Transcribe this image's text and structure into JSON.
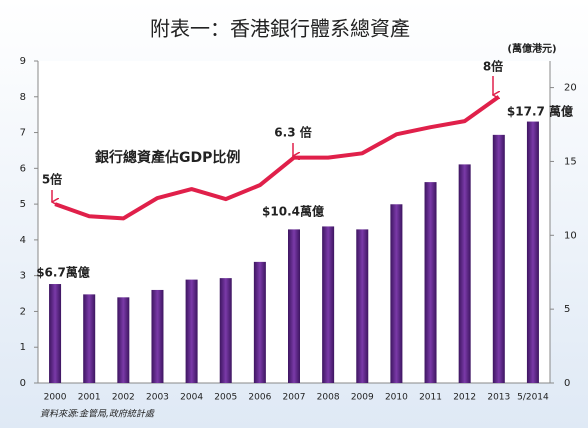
{
  "chart_data": {
    "type": "bar_line",
    "title": "附表一：香港銀行體系總資產",
    "y2_label": "(萬億港元)",
    "source": "資料來源:金管局,政府統計處",
    "categories": [
      "2000",
      "2001",
      "2002",
      "2003",
      "2004",
      "2005",
      "2006",
      "2007",
      "2008",
      "2009",
      "2010",
      "2011",
      "2012",
      "2013",
      "5/2014"
    ],
    "series": [
      {
        "name": "銀行體系總資產",
        "color": "#5a2a88",
        "type": "bar",
        "axis": "y2",
        "values": [
          6.7,
          6.0,
          5.8,
          6.3,
          7.0,
          7.1,
          8.2,
          10.4,
          10.6,
          10.4,
          12.1,
          13.6,
          14.8,
          16.8,
          17.7
        ]
      },
      {
        "name": "銀行總資產佔GDP比例",
        "color": "#e0204a",
        "type": "line",
        "axis": "y",
        "values": [
          5.0,
          4.66,
          4.6,
          5.17,
          5.42,
          5.14,
          5.53,
          6.3,
          6.3,
          6.42,
          6.95,
          7.15,
          7.32,
          8.0,
          null
        ]
      }
    ],
    "annotations": [
      "5倍",
      "6.3 倍",
      "8倍",
      "$6.7萬億",
      "$10.4萬億",
      "$17.7 萬億"
    ],
    "ylim": [
      0,
      9
    ],
    "yticks": [
      0,
      1,
      2,
      3,
      4,
      5,
      6,
      7,
      8,
      9
    ],
    "y2lim": [
      0,
      21.8
    ],
    "y2ticks": [
      0,
      5,
      10,
      15,
      20
    ]
  }
}
